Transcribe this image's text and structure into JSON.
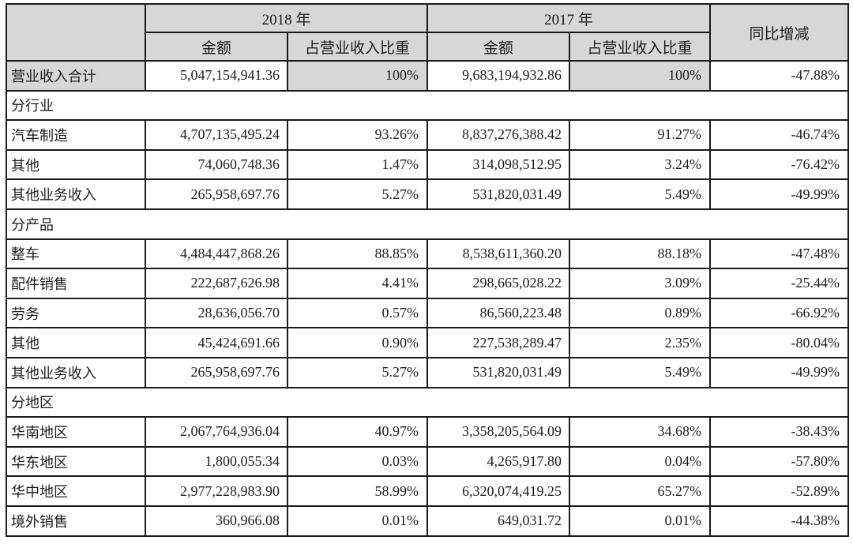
{
  "table": {
    "colors": {
      "header_bg": "#d7d7d7",
      "section_bg": "#d7d7d7",
      "border": "#1a1a1a",
      "text": "#1c1c1c"
    },
    "header": {
      "year_2018": "2018 年",
      "year_2017": "2017 年",
      "yoy": "同比增减",
      "amount_2018": "金额",
      "share_2018": "占营业收入比重",
      "amount_2017": "金额",
      "share_2017": "占营业收入比重"
    },
    "body_rows": [
      {
        "type": "data",
        "shaded": true,
        "label": "营业收入合计",
        "a2018": "5,047,154,941.36",
        "s2018": "100%",
        "a2017": "9,683,194,932.86",
        "s2017": "100%",
        "yoy": "-47.88%"
      },
      {
        "type": "section",
        "label": "分行业"
      },
      {
        "type": "data",
        "label": "汽车制造",
        "a2018": "4,707,135,495.24",
        "s2018": "93.26%",
        "a2017": "8,837,276,388.42",
        "s2017": "91.27%",
        "yoy": "-46.74%"
      },
      {
        "type": "data",
        "label": "其他",
        "a2018": "74,060,748.36",
        "s2018": "1.47%",
        "a2017": "314,098,512.95",
        "s2017": "3.24%",
        "yoy": "-76.42%"
      },
      {
        "type": "data",
        "label": "其他业务收入",
        "a2018": "265,958,697.76",
        "s2018": "5.27%",
        "a2017": "531,820,031.49",
        "s2017": "5.49%",
        "yoy": "-49.99%"
      },
      {
        "type": "section",
        "label": "分产品"
      },
      {
        "type": "data",
        "label": "整车",
        "a2018": "4,484,447,868.26",
        "s2018": "88.85%",
        "a2017": "8,538,611,360.20",
        "s2017": "88.18%",
        "yoy": "-47.48%"
      },
      {
        "type": "data",
        "label": "配件销售",
        "a2018": "222,687,626.98",
        "s2018": "4.41%",
        "a2017": "298,665,028.22",
        "s2017": "3.09%",
        "yoy": "-25.44%"
      },
      {
        "type": "data",
        "label": "劳务",
        "a2018": "28,636,056.70",
        "s2018": "0.57%",
        "a2017": "86,560,223.48",
        "s2017": "0.89%",
        "yoy": "-66.92%"
      },
      {
        "type": "data",
        "label": "其他",
        "a2018": "45,424,691.66",
        "s2018": "0.90%",
        "a2017": "227,538,289.47",
        "s2017": "2.35%",
        "yoy": "-80.04%"
      },
      {
        "type": "data",
        "label": "其他业务收入",
        "a2018": "265,958,697.76",
        "s2018": "5.27%",
        "a2017": "531,820,031.49",
        "s2017": "5.49%",
        "yoy": "-49.99%"
      },
      {
        "type": "section",
        "label": "分地区"
      },
      {
        "type": "data",
        "label": "华南地区",
        "a2018": "2,067,764,936.04",
        "s2018": "40.97%",
        "a2017": "3,358,205,564.09",
        "s2017": "34.68%",
        "yoy": "-38.43%"
      },
      {
        "type": "data",
        "label": "华东地区",
        "a2018": "1,800,055.34",
        "s2018": "0.03%",
        "a2017": "4,265,917.80",
        "s2017": "0.04%",
        "yoy": "-57.80%"
      },
      {
        "type": "data",
        "label": "华中地区",
        "a2018": "2,977,228,983.90",
        "s2018": "58.99%",
        "a2017": "6,320,074,419.25",
        "s2017": "65.27%",
        "yoy": "-52.89%"
      },
      {
        "type": "data",
        "label": "境外销售",
        "a2018": "360,966.08",
        "s2018": "0.01%",
        "a2017": "649,031.72",
        "s2017": "0.01%",
        "yoy": "-44.38%"
      }
    ]
  }
}
